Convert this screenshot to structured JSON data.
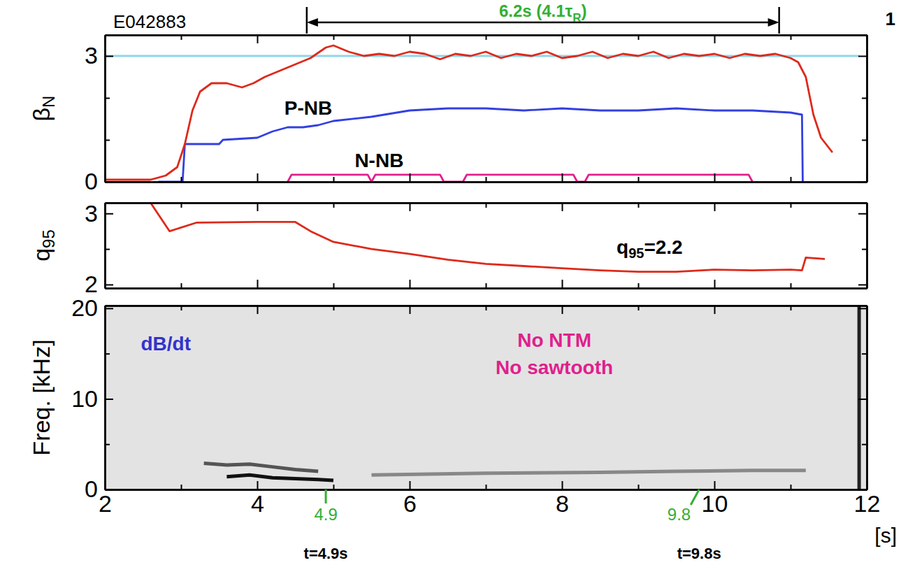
{
  "chart_data": [
    {
      "type": "line",
      "title": "E042883",
      "corner_label": "1",
      "span": {
        "from": 4.65,
        "to": 10.85,
        "color": "#33b033",
        "label": [
          {
            "text": "6.2s (4.1τ"
          },
          {
            "text": "R",
            "sub": true
          },
          {
            "text": ")"
          }
        ]
      },
      "ylabel": [
        {
          "text": "β"
        },
        {
          "text": "N",
          "sub": true
        }
      ],
      "xlim": [
        2,
        12
      ],
      "xticks": [
        2,
        4,
        6,
        8,
        10,
        12
      ],
      "minor_xticks": [
        3,
        5,
        7,
        9,
        11
      ],
      "ylim": [
        0,
        3.5
      ],
      "yticks": [
        0,
        3
      ],
      "minor_yticks": [
        1,
        2
      ],
      "tick_labels": "y",
      "series": [
        {
          "color": "#8fd6ea",
          "x": [
            2,
            11.9
          ],
          "values": [
            3,
            3
          ]
        },
        {
          "color": "#3340e0",
          "x": [
            2.7,
            3.02,
            3.05,
            3.5,
            3.55,
            4.0,
            4.2,
            4.4,
            4.6,
            4.8,
            5.0,
            5.5,
            6.0,
            6.5,
            7.0,
            7.5,
            8.0,
            8.5,
            9.0,
            9.5,
            10.0,
            10.5,
            11.0,
            11.15,
            11.16
          ],
          "values": [
            0,
            0,
            0.9,
            0.9,
            1.0,
            1.05,
            1.2,
            1.3,
            1.3,
            1.35,
            1.45,
            1.55,
            1.7,
            1.75,
            1.75,
            1.7,
            1.75,
            1.7,
            1.7,
            1.75,
            1.7,
            1.7,
            1.65,
            1.6,
            0
          ]
        },
        {
          "color": "#e0208c",
          "x": [
            4.4,
            4.45,
            5.45,
            5.5,
            5.55,
            6.4,
            6.45,
            6.7,
            6.75,
            8.15,
            8.2,
            8.3,
            8.35,
            10.45,
            10.5
          ],
          "values": [
            0,
            0.17,
            0.17,
            0,
            0.17,
            0.17,
            0,
            0,
            0.17,
            0.17,
            0,
            0,
            0.17,
            0.17,
            0
          ]
        },
        {
          "color": "#dd2a1b",
          "x": [
            2,
            2.6,
            2.8,
            2.95,
            3.05,
            3.15,
            3.25,
            3.4,
            3.6,
            3.8,
            3.95,
            4.1,
            4.3,
            4.5,
            4.7,
            4.9,
            5.0,
            5.2,
            5.4,
            5.6,
            5.8,
            6.0,
            6.2,
            6.4,
            6.6,
            6.8,
            7.0,
            7.2,
            7.4,
            7.6,
            7.8,
            8.0,
            8.2,
            8.4,
            8.6,
            8.8,
            9.0,
            9.2,
            9.4,
            9.6,
            9.8,
            10.0,
            10.2,
            10.4,
            10.6,
            10.8,
            11.0,
            11.1,
            11.2,
            11.3,
            11.4,
            11.55
          ],
          "values": [
            0.05,
            0.05,
            0.15,
            0.35,
            0.9,
            1.7,
            2.15,
            2.35,
            2.35,
            2.25,
            2.35,
            2.5,
            2.65,
            2.8,
            2.95,
            3.2,
            3.25,
            3.1,
            3.0,
            3.05,
            3.0,
            3.1,
            3.05,
            2.92,
            3.05,
            3.0,
            3.1,
            2.95,
            3.05,
            3.0,
            3.1,
            2.95,
            3.0,
            3.1,
            2.95,
            3.05,
            3.0,
            3.1,
            2.95,
            3.05,
            3.0,
            3.05,
            2.95,
            3.05,
            3.0,
            3.05,
            2.95,
            2.85,
            2.5,
            1.6,
            1.05,
            0.7
          ]
        }
      ],
      "annotations": [
        {
          "text": "P-NB",
          "x": 4.67,
          "y": 1.72,
          "color": "#000000"
        },
        {
          "text": "N-NB",
          "x": 5.6,
          "y": 0.48,
          "color": "#000000"
        }
      ]
    },
    {
      "type": "line",
      "ylabel": [
        {
          "text": "q"
        },
        {
          "text": "95",
          "sub": true
        }
      ],
      "xlim": [
        2,
        12
      ],
      "xticks": [
        2,
        4,
        6,
        8,
        10,
        12
      ],
      "minor_xticks": [
        3,
        5,
        7,
        9,
        11
      ],
      "ylim": [
        1.95,
        3.15
      ],
      "yticks": [
        2,
        3
      ],
      "minor_yticks": [
        2.5
      ],
      "tick_labels": "y",
      "series": [
        {
          "color": "#dd2a1b",
          "x": [
            2.6,
            2.85,
            3.2,
            4.0,
            4.5,
            4.7,
            5.0,
            5.5,
            6.0,
            6.5,
            7.0,
            7.5,
            8.0,
            8.5,
            9.0,
            9.5,
            10.0,
            10.5,
            11.0,
            11.15,
            11.2,
            11.45
          ],
          "values": [
            3.15,
            2.75,
            2.87,
            2.88,
            2.88,
            2.75,
            2.6,
            2.5,
            2.43,
            2.35,
            2.29,
            2.26,
            2.23,
            2.2,
            2.18,
            2.18,
            2.21,
            2.2,
            2.21,
            2.2,
            2.38,
            2.36
          ]
        }
      ],
      "annotations": [
        {
          "text": [
            {
              "text": "q"
            },
            {
              "text": "95",
              "sub": true
            },
            {
              "text": "=2.2"
            }
          ],
          "x": 9.15,
          "y": 2.5,
          "color": "#000000"
        }
      ]
    },
    {
      "type": "spectrogram",
      "ylabel": "Freq. [kHz]",
      "xlabel": "[s]",
      "xlim": [
        2,
        12
      ],
      "xticks": [
        2,
        4,
        6,
        8,
        10,
        12
      ],
      "minor_xticks": [
        3,
        5,
        7,
        9,
        11
      ],
      "ylim": [
        0,
        20.3
      ],
      "yticks": [
        0,
        10,
        20
      ],
      "minor_yticks": [
        5,
        15
      ],
      "series": [
        {
          "color": "#555555",
          "x": [
            3.3,
            3.6,
            3.9,
            4.2,
            4.5,
            4.8
          ],
          "values": [
            2.9,
            2.7,
            2.8,
            2.5,
            2.2,
            2.0
          ]
        },
        {
          "color": "#111111",
          "x": [
            3.6,
            3.9,
            4.2,
            4.5,
            4.8,
            5.0
          ],
          "values": [
            1.4,
            1.6,
            1.3,
            1.2,
            1.1,
            1.0
          ]
        },
        {
          "color": "#888888",
          "x": [
            5.5,
            7.0,
            8.5,
            9.5,
            10.5,
            11.2
          ],
          "values": [
            1.6,
            1.8,
            1.9,
            2.0,
            2.1,
            2.1
          ]
        },
        {
          "color": "#222222",
          "x": [
            11.9,
            11.9
          ],
          "values": [
            0,
            20.3
          ]
        }
      ],
      "annotations": [
        {
          "text": "dB/dt",
          "x": 2.8,
          "y": 15.9,
          "color": "#3333cc"
        },
        {
          "text": "No NTM",
          "x": 7.9,
          "y": 16.3,
          "color": "#e0208c"
        },
        {
          "text": "No sawtooth",
          "x": 7.9,
          "y": 13.3,
          "color": "#e0208c"
        }
      ],
      "markers": [
        {
          "x": 4.9,
          "label": "4.9",
          "color": "#33b033"
        },
        {
          "x": 9.8,
          "label": "9.8",
          "color": "#33b033"
        }
      ],
      "captions": [
        {
          "text": "t=4.9s",
          "x": 4.9
        },
        {
          "text": "t=9.8s",
          "x": 9.8
        }
      ]
    }
  ]
}
